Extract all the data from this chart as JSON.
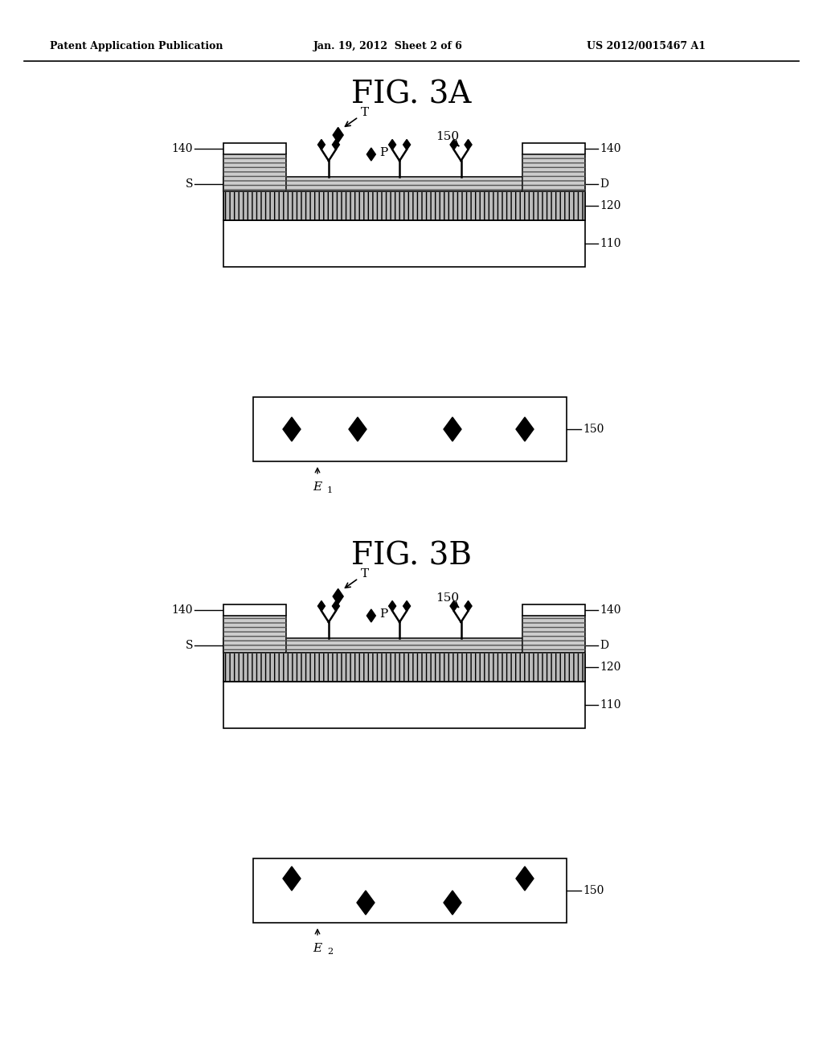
{
  "header_left": "Patent Application Publication",
  "header_center": "Jan. 19, 2012  Sheet 2 of 6",
  "header_right": "US 2012/0015467 A1",
  "fig3a_title": "FIG. 3A",
  "fig3b_title": "FIG. 3B",
  "bg_color": "#ffffff",
  "line_color": "#000000",
  "label_110": "110",
  "label_120": "120",
  "label_140_left": "140",
  "label_140_right": "140",
  "label_S": "S",
  "label_D": "D",
  "label_150": "150",
  "label_T": "T",
  "label_P": "P",
  "label_E1": "E",
  "label_E1_sub": "1",
  "label_E2": "E",
  "label_E2_sub": "2"
}
